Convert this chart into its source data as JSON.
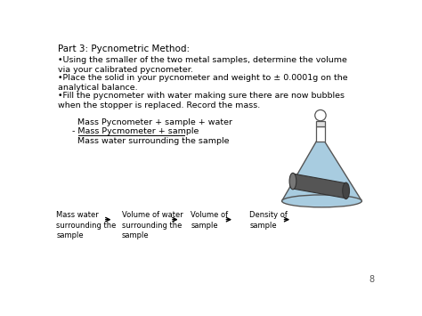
{
  "background_color": "#ffffff",
  "title": "Part 3: Pycnometric Method:",
  "bullet1": "•Using the smaller of the two metal samples, determine the volume\nvia your calibrated pycnometer.",
  "bullet2": "•Place the solid in your pycnometer and weight to ± 0.0001g on the\nanalytical balance.",
  "bullet3": "•Fill the pycnometer with water making sure there are now bubbles\nwhen the stopper is replaced. Record the mass.",
  "eq_line1": "  Mass Pycnometer + sample + water",
  "eq_line2": "- Mass Pycmometer + sample",
  "eq_line3": "  Mass water surrounding the sample",
  "flow_labels": [
    "Mass water\nsurrounding the\nsample",
    "Volume of water\nsurrounding the\nsample",
    "Volume of\nsample",
    "Density of\nsample"
  ],
  "page_number": "8",
  "text_color": "#000000",
  "title_fontsize": 7.5,
  "body_fontsize": 6.8,
  "eq_fontsize": 6.8,
  "flow_fontsize": 6.0,
  "flask_color": "#a8cce0",
  "flask_edge": "#555555",
  "cyl_color": "#555555",
  "cyl_edge": "#333333"
}
